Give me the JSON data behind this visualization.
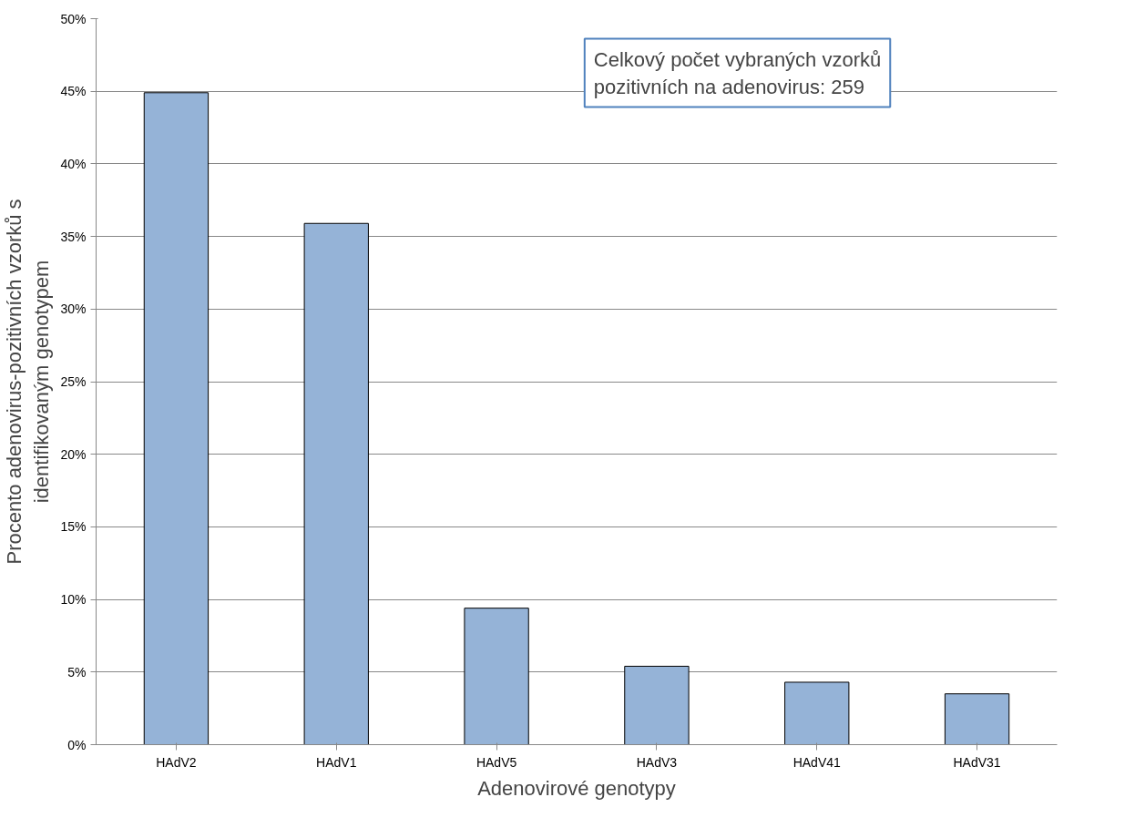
{
  "chart_data": {
    "type": "bar",
    "xlabel": "Adenovirové genotypy",
    "ylabel": "Procento adenovirus-pozitivních vzorků s\nidentifikovaným genotypem",
    "categories": [
      "HAdV2",
      "HAdV1",
      "HAdV5",
      "HAdV3",
      "HAdV41",
      "HAdV31"
    ],
    "values": [
      44.9,
      35.9,
      9.4,
      5.4,
      4.3,
      3.5
    ],
    "color": "#95b3d7",
    "ylim": [
      0,
      50
    ],
    "yticks": [
      {
        "value": 0,
        "label": "0%"
      },
      {
        "value": 5,
        "label": "5%"
      },
      {
        "value": 10,
        "label": "10%"
      },
      {
        "value": 15,
        "label": "15%"
      },
      {
        "value": 20,
        "label": "20%"
      },
      {
        "value": 25,
        "label": "25%"
      },
      {
        "value": 30,
        "label": "30%"
      },
      {
        "value": 35,
        "label": "35%"
      },
      {
        "value": 40,
        "label": "40%"
      },
      {
        "value": 45,
        "label": "45%"
      },
      {
        "value": 50,
        "label": "50%"
      }
    ],
    "grid": "y",
    "annotations": [
      "Celkový počet vybraných vzorků\npozitivních na adenovirus: 259"
    ]
  }
}
